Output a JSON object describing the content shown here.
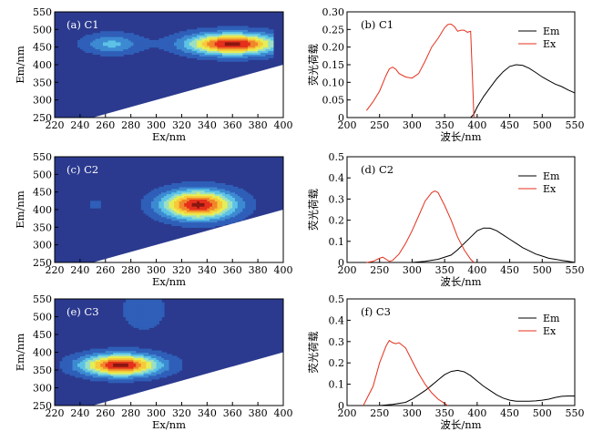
{
  "chart_data": [
    {
      "id": "a",
      "type": "heatmap",
      "panel_label": "(a) C1",
      "xlabel": "Ex/nm",
      "ylabel": "Em/nm",
      "xlim": [
        220,
        400
      ],
      "ylim": [
        250,
        550
      ],
      "xticks": [
        "220",
        "240",
        "260",
        "280",
        "300",
        "320",
        "340",
        "360",
        "380",
        "400"
      ],
      "yticks": [
        "250",
        "300",
        "350",
        "400",
        "450",
        "500",
        "550"
      ],
      "colorscale": [
        "#2b3a8f",
        "#2f5fb8",
        "#3d8ad2",
        "#5cc3e6",
        "#9be0c4",
        "#e6ee55",
        "#f7c93a",
        "#f0862a",
        "#e5301d",
        "#8a1711"
      ],
      "background_color": "#2b3a8f",
      "peaks": [
        {
          "ex": 360,
          "em": 460,
          "ex_spread": 35,
          "em_spread": 30,
          "amp": 1.0
        },
        {
          "ex": 265,
          "em": 460,
          "ex_spread": 22,
          "em_spread": 28,
          "amp": 0.32
        }
      ],
      "data_region": {
        "ex_max_signal": 392,
        "em_min_at_ex_min": 250,
        "blank_below": [
          [
            250,
            250
          ],
          [
            400,
            400
          ]
        ]
      }
    },
    {
      "id": "b",
      "type": "line",
      "panel_label": "(b) C1",
      "xlabel": "波长/nm",
      "ylabel": "荧光荷载",
      "xlim": [
        200,
        550
      ],
      "ylim": [
        0,
        0.3
      ],
      "xticks": [
        "200",
        "250",
        "300",
        "350",
        "400",
        "450",
        "500",
        "550"
      ],
      "yticks": [
        "0",
        "0.05",
        "0.10",
        "0.15",
        "0.20",
        "0.25",
        "0.30"
      ],
      "legend": {
        "position": "top-right"
      },
      "series": [
        {
          "name": "Em",
          "color": "#000000",
          "x": [
            390,
            395,
            400,
            410,
            420,
            430,
            440,
            450,
            460,
            470,
            480,
            490,
            500,
            510,
            520,
            530,
            540,
            550
          ],
          "y": [
            0.0,
            0.01,
            0.03,
            0.06,
            0.085,
            0.11,
            0.13,
            0.145,
            0.15,
            0.148,
            0.14,
            0.128,
            0.115,
            0.105,
            0.095,
            0.088,
            0.078,
            0.07
          ]
        },
        {
          "name": "Ex",
          "color": "#e5301d",
          "x": [
            230,
            240,
            250,
            260,
            265,
            270,
            275,
            280,
            290,
            300,
            310,
            320,
            330,
            340,
            350,
            355,
            360,
            365,
            370,
            375,
            380,
            385,
            390,
            393,
            395
          ],
          "y": [
            0.02,
            0.045,
            0.075,
            0.12,
            0.138,
            0.143,
            0.137,
            0.125,
            0.115,
            0.112,
            0.125,
            0.16,
            0.2,
            0.225,
            0.255,
            0.264,
            0.265,
            0.258,
            0.245,
            0.248,
            0.248,
            0.242,
            0.245,
            0.1,
            0.0
          ]
        }
      ]
    },
    {
      "id": "c",
      "type": "heatmap",
      "panel_label": "(c) C2",
      "xlabel": "Ex/nm",
      "ylabel": "Em/nm",
      "xlim": [
        220,
        400
      ],
      "ylim": [
        250,
        550
      ],
      "xticks": [
        "220",
        "240",
        "260",
        "280",
        "300",
        "320",
        "340",
        "360",
        "380",
        "400"
      ],
      "yticks": [
        "250",
        "300",
        "350",
        "400",
        "450",
        "500",
        "550"
      ],
      "colorscale": [
        "#2b3a8f",
        "#2f5fb8",
        "#3d8ad2",
        "#5cc3e6",
        "#9be0c4",
        "#e6ee55",
        "#f7c93a",
        "#f0862a",
        "#e5301d",
        "#8a1711"
      ],
      "background_color": "#2b3a8f",
      "peaks": [
        {
          "ex": 333,
          "em": 415,
          "ex_spread": 28,
          "em_spread": 40,
          "amp": 1.0
        },
        {
          "ex": 252,
          "em": 415,
          "ex_spread": 5,
          "em_spread": 12,
          "amp": 0.16
        }
      ],
      "data_region": {
        "ex_max_signal": 400,
        "em_min_at_ex_min": 250,
        "blank_below": [
          [
            250,
            250
          ],
          [
            400,
            400
          ]
        ]
      }
    },
    {
      "id": "d",
      "type": "line",
      "panel_label": "(d) C2",
      "xlabel": "波长/nm",
      "ylabel": "荧光荷载",
      "xlim": [
        200,
        550
      ],
      "ylim": [
        0,
        0.5
      ],
      "xticks": [
        "200",
        "250",
        "300",
        "350",
        "400",
        "450",
        "500",
        "550"
      ],
      "yticks": [
        "0",
        "0.1",
        "0.2",
        "0.3",
        "0.4",
        "0.5"
      ],
      "legend": {
        "position": "top-right"
      },
      "series": [
        {
          "name": "Em",
          "color": "#000000",
          "x": [
            300,
            320,
            340,
            360,
            370,
            380,
            390,
            400,
            410,
            420,
            430,
            440,
            450,
            460,
            470,
            480,
            490,
            500,
            510,
            520,
            530,
            540,
            550
          ],
          "y": [
            0.0,
            0.005,
            0.015,
            0.035,
            0.06,
            0.09,
            0.12,
            0.15,
            0.163,
            0.162,
            0.15,
            0.13,
            0.11,
            0.09,
            0.07,
            0.055,
            0.04,
            0.03,
            0.02,
            0.015,
            0.01,
            0.005,
            0.0
          ]
        },
        {
          "name": "Ex",
          "color": "#e5301d",
          "x": [
            230,
            240,
            250,
            255,
            260,
            265,
            270,
            280,
            290,
            300,
            310,
            320,
            330,
            335,
            340,
            350,
            360,
            370,
            380,
            390,
            395
          ],
          "y": [
            0.0,
            0.005,
            0.02,
            0.025,
            0.015,
            0.005,
            0.01,
            0.04,
            0.09,
            0.15,
            0.22,
            0.29,
            0.33,
            0.338,
            0.33,
            0.27,
            0.2,
            0.12,
            0.06,
            0.015,
            0.0
          ]
        }
      ]
    },
    {
      "id": "e",
      "type": "heatmap",
      "panel_label": "(e) C3",
      "xlabel": "Ex/nm",
      "ylabel": "Em/nm",
      "xlim": [
        220,
        400
      ],
      "ylim": [
        250,
        550
      ],
      "xticks": [
        "220",
        "240",
        "260",
        "280",
        "300",
        "320",
        "340",
        "360",
        "380",
        "400"
      ],
      "yticks": [
        "250",
        "300",
        "350",
        "400",
        "450",
        "500",
        "550"
      ],
      "colorscale": [
        "#2b3a8f",
        "#2f5fb8",
        "#3d8ad2",
        "#5cc3e6",
        "#9be0c4",
        "#e6ee55",
        "#f7c93a",
        "#f0862a",
        "#e5301d",
        "#8a1711"
      ],
      "background_color": "#2b3a8f",
      "peaks": [
        {
          "ex": 272,
          "em": 365,
          "ex_spread": 30,
          "em_spread": 30,
          "amp": 1.0
        },
        {
          "ex": 290,
          "em": 520,
          "ex_spread": 18,
          "em_spread": 60,
          "amp": 0.16
        }
      ],
      "data_region": {
        "ex_max_signal": 400,
        "em_min_at_ex_min": 250,
        "blank_below": [
          [
            250,
            250
          ],
          [
            400,
            400
          ]
        ]
      }
    },
    {
      "id": "f",
      "type": "line",
      "panel_label": "(f) C3",
      "xlabel": "波长/nm",
      "ylabel": "荧光荷载",
      "xlim": [
        200,
        550
      ],
      "ylim": [
        0,
        0.5
      ],
      "xticks": [
        "200",
        "250",
        "300",
        "350",
        "400",
        "450",
        "500",
        "550"
      ],
      "yticks": [
        "0",
        "0.1",
        "0.2",
        "0.3",
        "0.4",
        "0.5"
      ],
      "legend": {
        "position": "top-right"
      },
      "series": [
        {
          "name": "Em",
          "color": "#000000",
          "x": [
            250,
            270,
            290,
            300,
            310,
            320,
            330,
            340,
            350,
            360,
            370,
            380,
            390,
            400,
            410,
            420,
            430,
            440,
            450,
            460,
            470,
            480,
            490,
            500,
            510,
            520,
            530,
            540,
            550
          ],
          "y": [
            0.0,
            0.005,
            0.015,
            0.03,
            0.05,
            0.07,
            0.095,
            0.12,
            0.145,
            0.16,
            0.165,
            0.158,
            0.14,
            0.115,
            0.09,
            0.07,
            0.05,
            0.035,
            0.025,
            0.02,
            0.02,
            0.02,
            0.022,
            0.025,
            0.03,
            0.038,
            0.043,
            0.045,
            0.045
          ]
        },
        {
          "name": "Ex",
          "color": "#e5301d",
          "x": [
            225,
            230,
            240,
            250,
            260,
            265,
            270,
            275,
            280,
            290,
            300,
            310,
            320,
            330,
            340,
            350,
            355
          ],
          "y": [
            0.0,
            0.03,
            0.09,
            0.2,
            0.28,
            0.305,
            0.295,
            0.29,
            0.295,
            0.27,
            0.21,
            0.15,
            0.1,
            0.06,
            0.03,
            0.01,
            0.0
          ]
        }
      ]
    }
  ]
}
